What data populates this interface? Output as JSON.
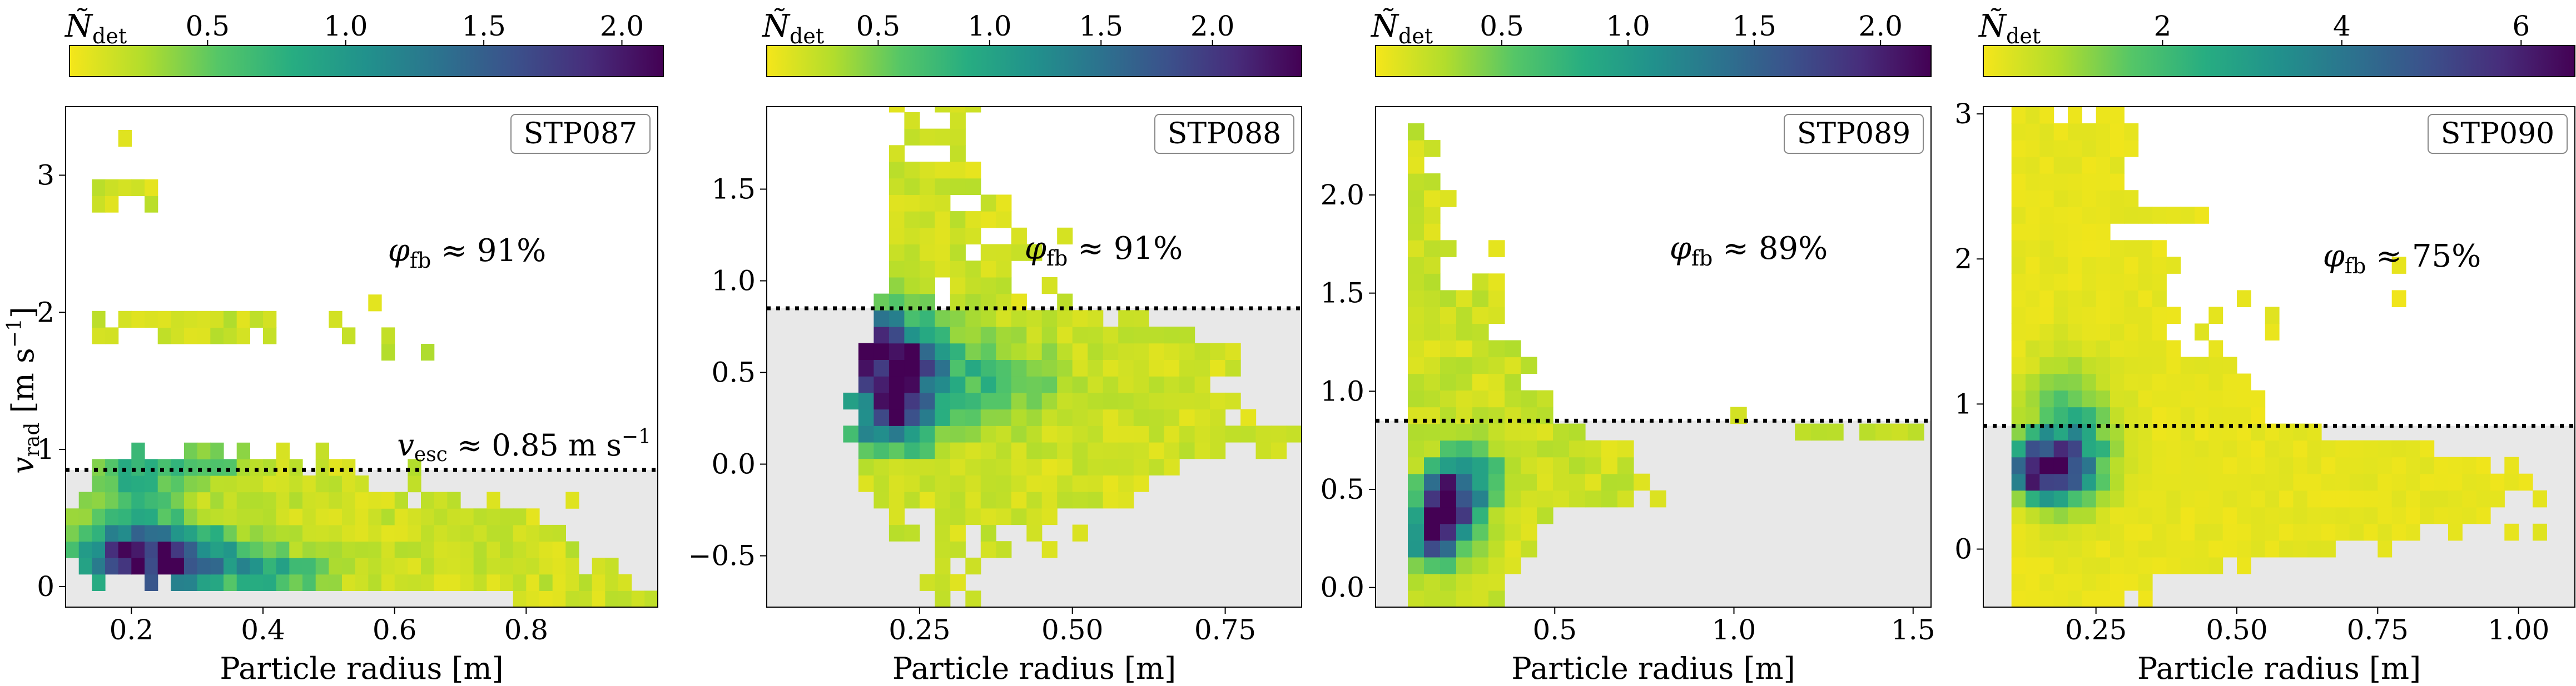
{
  "colors": {
    "ramp": [
      "#f5e61a",
      "#b2dd2c",
      "#55c667",
      "#27ad81",
      "#21918c",
      "#2c728e",
      "#3b518b",
      "#472d7b",
      "#440154"
    ],
    "escape_region": "#e8e8e8",
    "escape_line": "#000000"
  },
  "chart_data": [
    {
      "type": "heatmap",
      "id": "STP087",
      "panel_label": "STP087",
      "xlabel": "Particle radius [m]",
      "ylabel": "v_rad [m s⁻¹]",
      "colorbar_label": "Ñ_det",
      "colorbar_range": [
        0.0,
        2.15
      ],
      "colorbar_ticks": [
        0.5,
        1.0,
        1.5,
        2.0
      ],
      "colorbar_tick_labels": [
        "0.5",
        "1.0",
        "1.5",
        "2.0"
      ],
      "xlim": [
        0.1,
        1.0
      ],
      "ylim": [
        -0.15,
        3.5
      ],
      "xticks": [
        0.2,
        0.4,
        0.6,
        0.8
      ],
      "xtick_labels": [
        "0.2",
        "0.4",
        "0.6",
        "0.8"
      ],
      "yticks": [
        0,
        1,
        2,
        3
      ],
      "ytick_labels": [
        "0",
        "1",
        "2",
        "3"
      ],
      "escape_velocity": 0.85,
      "escape_label": "v_esc ≈ 0.85 m s⁻¹",
      "fraction_label": "φ_fb ≈ 91%",
      "bins": {
        "x0": 0.1,
        "dx": 0.02,
        "y0": -0.15,
        "dy": 0.12,
        "nx": 45,
        "rows": [
          "..................................oooooooooooo",
          "..o...o.ooooooooooooooooooooooooooooooooooo..o",
          ".oooooooooooooooooooooooooooooooooooooo.oo....",
          "ooooooooooooooooooooooooooooooooooooooo.......",
          "oooooooooooooooooooooooooooooooooooooo........",
          "oooooooooooooooooooooooooooooooooooo..........",
          ".ooooooooooooooooooooooooo.ooo..o.....o.......",
          "..ooooooooooooooooooooo...o...................",
          "..oooooooooooooooo.ooo....o...................",
          ".....o...ooo.o..o..o..........................",
          "..............................................",
          "..............................................",
          "..............................................",
          "..............................................",
          "..............................................",
          "........................o..o..................",
          "..oo...ooooooo.o.....o..o.....................",
          "..o.oooooooooooo....o.........................",
          ".......................o.....................",
          "..............................................",
          "..............................................",
          "..............................................",
          "..............................................",
          "..............................................",
          "..oo..o.......................................",
          "..ooooo.......................................",
          "..............................................",
          "..............................................",
          "....o........................................."
        ],
        "hot": [
          {
            "cx": 0.235,
            "cy": 0.2,
            "sx": 0.075,
            "sy": 0.16,
            "v": 2.1
          },
          {
            "cx": 0.42,
            "cy": 0.1,
            "sx": 0.05,
            "sy": 0.1,
            "v": 0.8
          },
          {
            "cx": 0.2,
            "cy": 0.75,
            "sx": 0.04,
            "sy": 0.3,
            "v": 0.6
          },
          {
            "cx": 0.3,
            "cy": 0.9,
            "sx": 0.05,
            "sy": 0.1,
            "v": 0.5
          }
        ]
      }
    },
    {
      "type": "heatmap",
      "id": "STP088",
      "panel_label": "STP088",
      "xlabel": "Particle radius [m]",
      "ylabel": "",
      "colorbar_label": "Ñ_det",
      "colorbar_range": [
        0.0,
        2.4
      ],
      "colorbar_ticks": [
        0.5,
        1.0,
        1.5,
        2.0
      ],
      "colorbar_tick_labels": [
        "0.5",
        "1.0",
        "1.5",
        "2.0"
      ],
      "xlim": [
        0.0,
        0.875
      ],
      "ylim": [
        -0.78,
        1.95
      ],
      "xticks": [
        0.25,
        0.5,
        0.75
      ],
      "xtick_labels": [
        "0.25",
        "0.50",
        "0.75"
      ],
      "yticks": [
        -0.5,
        0.0,
        0.5,
        1.0,
        1.5
      ],
      "ytick_labels": [
        "−0.5",
        "0.0",
        "0.5",
        "1.0",
        "1.5"
      ],
      "escape_velocity": 0.85,
      "escape_label": "",
      "fraction_label": "φ_fb ≈ 91%",
      "bins": {
        "x0": 0.0,
        "dx": 0.025,
        "y0": -0.78,
        "dy": 0.09,
        "nx": 35,
        "rows": [
          "...........o.o...................",
          "..........ooo.....................",
          "...........o.o....................",
          "...........oo.oo..o...............",
          "........oo.oo.o..o..o.............",
          "........o..oooooooo...............",
          ".......ooooooooooooooooo..........",
          "......ooooooooooooooooooo.........",
          "......ooooooooooooooooooooo.......",
          "......oooooooooooooooooooooooo..oo.",
          ".....oooooooooooooooooooooooooooooo",
          "......oooooooooooooooooooooooo.o...",
          ".....oooooooooooooooooooooooooo....",
          "......ooooooooooooooooooooooo......",
          "......ooooooooooooooooooooooooo....",
          "......ooooooooooooooooooooooooo....",
          ".......ooooooooooooooooooooo.......",
          ".......ooooooooooooooo.oo..........",
          ".......oooo.ooooo..o...............",
          "........ooo.oooo..o................",
          "........oooooooo...................",
          "........ooooo.oooo.................",
          "........oooooo..o..o...............",
          "........oooooooo...................",
          "........oooo..oo...................",
          "........oooooo.....................",
          "........oooooo.....................",
          "........o...o......................",
          ".........oooo......................",
          ".........o..o......................",
          "........o..ooo.....................",
          "...........o.o....................."
        ],
        "hot": [
          {
            "cx": 0.21,
            "cy": 0.52,
            "sx": 0.06,
            "sy": 0.2,
            "v": 2.3
          },
          {
            "cx": 0.13,
            "cy": 0.68,
            "sx": 0.04,
            "sy": 0.12,
            "v": 1.3
          },
          {
            "cx": 0.2,
            "cy": 0.22,
            "sx": 0.05,
            "sy": 0.1,
            "v": 1.1
          },
          {
            "cx": 0.38,
            "cy": 0.45,
            "sx": 0.07,
            "sy": 0.15,
            "v": 0.5
          }
        ]
      }
    },
    {
      "type": "heatmap",
      "id": "STP089",
      "panel_label": "STP089",
      "xlabel": "Particle radius [m]",
      "ylabel": "",
      "colorbar_label": "Ñ_det",
      "colorbar_range": [
        0.0,
        2.2
      ],
      "colorbar_ticks": [
        0.5,
        1.0,
        1.5,
        2.0
      ],
      "colorbar_tick_labels": [
        "0.5",
        "1.0",
        "1.5",
        "2.0"
      ],
      "xlim": [
        0.0,
        1.55
      ],
      "ylim": [
        -0.1,
        2.45
      ],
      "xticks": [
        0.5,
        1.0,
        1.5
      ],
      "xtick_labels": [
        "0.5",
        "1.0",
        "1.5"
      ],
      "yticks": [
        0.0,
        0.5,
        1.0,
        1.5,
        2.0
      ],
      "ytick_labels": [
        "0.0",
        "0.5",
        "1.0",
        "1.5",
        "2.0"
      ],
      "escape_velocity": 0.85,
      "escape_label": "",
      "fraction_label": "φ_fb ≈ 89%",
      "bins": {
        "x0": 0.0,
        "dx": 0.045,
        "y0": -0.1,
        "dy": 0.085,
        "nx": 34,
        "rows": [
          "..oooooo...........................",
          "..oooooo..........................",
          "..ooooooo.........................",
          "..oooooooo........................",
          "..oooooooo.......................",
          "..ooooooooo.......................",
          "..oooooooooooooo.o................",
          "..ooooooooooooooo.................",
          "..oooooooooooooo..................",
          "..oooooooooooooo....................",
          "..ooooooooooo.............ooo.oooo.o",
          "..ooooooooo...........o............",
          "..ooooooooo.......................",
          "..ooooooo.........................",
          "..oooooooo........................",
          "..ooooooo.........................",
          "..ooooo...........................",
          "..oooooo..........................",
          "..oooooo..........................",
          "..oo..oo..........................",
          "..oo..............................",
          "..ooo..o..........................",
          "..oo..............................",
          "..oo..............................",
          "..ooo.............................",
          "..oo..............................",
          "..o...............................",
          "..oo..............................",
          "..o..............................."
        ],
        "hot": [
          {
            "cx": 0.2,
            "cy": 0.42,
            "sx": 0.05,
            "sy": 0.14,
            "v": 2.1
          },
          {
            "cx": 0.15,
            "cy": 0.25,
            "sx": 0.04,
            "sy": 0.1,
            "v": 1.2
          },
          {
            "cx": 0.28,
            "cy": 0.55,
            "sx": 0.05,
            "sy": 0.12,
            "v": 0.8
          }
        ]
      }
    },
    {
      "type": "heatmap",
      "id": "STP090",
      "panel_label": "STP090",
      "xlabel": "Particle radius [m]",
      "ylabel": "",
      "colorbar_label": "Ñ_det",
      "colorbar_range": [
        0.0,
        6.6
      ],
      "colorbar_ticks": [
        2,
        4,
        6
      ],
      "colorbar_tick_labels": [
        "2",
        "4",
        "6"
      ],
      "xlim": [
        0.05,
        1.1
      ],
      "ylim": [
        -0.4,
        3.05
      ],
      "xticks": [
        0.25,
        0.5,
        0.75,
        1.0
      ],
      "xtick_labels": [
        "0.25",
        "0.50",
        "0.75",
        "1.00"
      ],
      "yticks": [
        0,
        1,
        2,
        3
      ],
      "ytick_labels": [
        "0",
        "1",
        "2",
        "3"
      ],
      "escape_velocity": 0.85,
      "escape_label": "",
      "fraction_label": "φ_fb ≈ 75%",
      "bins": {
        "x0": 0.05,
        "dx": 0.025,
        "y0": -0.4,
        "dy": 0.115,
        "nx": 42,
        "rows": [
          "..oooooooo.o..............................",
          "..oooooooooo..............................",
          "..ooooooooooooooo.o.......................",
          "..ooooooooooooooooooooooo...o.............",
          "..ooooooooooooooooooooooooooooo..o...o.o..",
          "..oooooooooooooooooooooooooooooooooo......",
          "..ooooooooooooooooooooooooooooooooooo..o..",
          "..ooooooooooooooooooooooooooooooooooooo...",
          "..oooooooooooooooooooooooooooooooooo.o....",
          "..oooooooooooooooooooooooooooooo..........",
          "..oooooooooooooooooooooo..................",
          "..oooooooooooooooooo......................",
          "..oooooooooooooooooo......................",
          "..ooooooooooooooooo.......................",
          "..oooooooooooooooo........................",
          "..oooooooooooo..o.........................",
          "..ooooooooooo..o....o.....................",
          "..oooooooooooo..o...o.....................",
          "..ooooooooooo.....o..........o............",
          "..ooooooooooo.............................",
          "..oooooooooooo...............o............",
          "..ooooooooooo.............................",
          "..ooooooo.................................",
          "..oooooooooooooo..........................",
          "..ooooooooo...............................",
          "..oooooooo................................",
          "..oooooooo................................",
          "..ooooooooo...............................",
          "..ooooooooo...............................",
          "..ooo.o.oo................................"
        ],
        "hot": [
          {
            "cx": 0.15,
            "cy": 0.55,
            "sx": 0.04,
            "sy": 0.12,
            "v": 6.5
          },
          {
            "cx": 0.2,
            "cy": 0.6,
            "sx": 0.05,
            "sy": 0.2,
            "v": 3.2
          },
          {
            "cx": 0.2,
            "cy": 0.95,
            "sx": 0.05,
            "sy": 0.25,
            "v": 1.5
          }
        ]
      }
    }
  ]
}
